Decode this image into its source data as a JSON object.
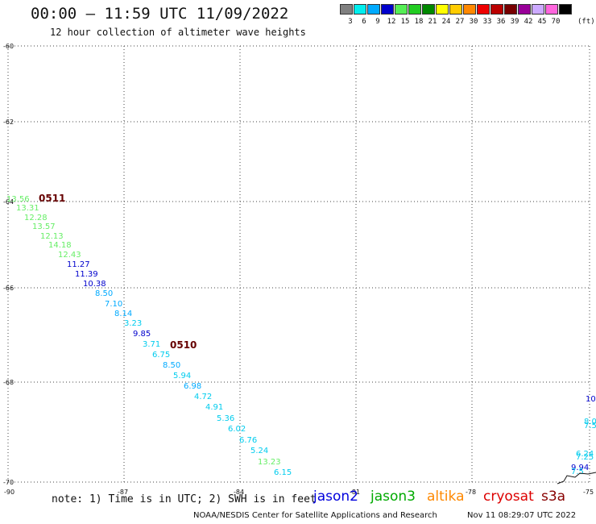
{
  "header": {
    "title": "00:00 – 11:59 UTC 11/09/2022",
    "subtitle": "12 hour collection of altimeter wave heights"
  },
  "legend": {
    "unit": "(ft)",
    "bins": [
      {
        "label": "3",
        "color": "#808080"
      },
      {
        "label": "6",
        "color": "#00eeee"
      },
      {
        "label": "9",
        "color": "#00aaff"
      },
      {
        "label": "12",
        "color": "#0000cc"
      },
      {
        "label": "15",
        "color": "#55ee55"
      },
      {
        "label": "18",
        "color": "#22cc22"
      },
      {
        "label": "21",
        "color": "#008800"
      },
      {
        "label": "24",
        "color": "#ffff00"
      },
      {
        "label": "27",
        "color": "#ffcc00"
      },
      {
        "label": "30",
        "color": "#ff8800"
      },
      {
        "label": "33",
        "color": "#ee0000"
      },
      {
        "label": "36",
        "color": "#bb0000"
      },
      {
        "label": "39",
        "color": "#770000"
      },
      {
        "label": "42",
        "color": "#990099"
      },
      {
        "label": "45",
        "color": "#ccaaff"
      },
      {
        "label": "70",
        "color": "#ff66dd"
      },
      {
        "label": "",
        "color": "#000000"
      }
    ]
  },
  "map": {
    "lon_range": [
      -90,
      -75
    ],
    "lat_range": [
      -70,
      -60
    ],
    "lon_ticks": [
      "-90",
      "-87",
      "-84",
      "-81",
      "-78",
      "-75"
    ],
    "lat_ticks": [
      "-60",
      "-62",
      "-64",
      "-66",
      "-68",
      "-70"
    ],
    "gridlines": true,
    "pass_times": [
      {
        "label": "0511",
        "color": "#660000"
      },
      {
        "label": "0510",
        "color": "#660000"
      }
    ],
    "observations": [
      {
        "text": "13.56",
        "color": "#66ee66"
      },
      {
        "text": "13.31",
        "color": "#66ee66"
      },
      {
        "text": "12.28",
        "color": "#66ee66"
      },
      {
        "text": "13.57",
        "color": "#66ee66"
      },
      {
        "text": "12.13",
        "color": "#66ee66"
      },
      {
        "text": "14.18",
        "color": "#66ee66"
      },
      {
        "text": "12.43",
        "color": "#66ee66"
      },
      {
        "text": "11.27",
        "color": "#0000cc"
      },
      {
        "text": "11.39",
        "color": "#0000cc"
      },
      {
        "text": "10.38",
        "color": "#0000cc"
      },
      {
        "text": "8.50",
        "color": "#00aaff"
      },
      {
        "text": "7.10",
        "color": "#00aaff"
      },
      {
        "text": "8.14",
        "color": "#00aaff"
      },
      {
        "text": "3.23",
        "color": "#00ccee"
      },
      {
        "text": "9.85",
        "color": "#0000cc"
      },
      {
        "text": "3.71",
        "color": "#00ccee"
      },
      {
        "text": "6.75",
        "color": "#00ccee"
      },
      {
        "text": "8.50",
        "color": "#00aaff"
      },
      {
        "text": "5.94",
        "color": "#00ccee"
      },
      {
        "text": "6.98",
        "color": "#00aaff"
      },
      {
        "text": "4.72",
        "color": "#00ccee"
      },
      {
        "text": "4.91",
        "color": "#00ccee"
      },
      {
        "text": "5.36",
        "color": "#00ccee"
      },
      {
        "text": "6.02",
        "color": "#00ccee"
      },
      {
        "text": "6.76",
        "color": "#00ccee"
      },
      {
        "text": "5.24",
        "color": "#00ccee"
      },
      {
        "text": "13.23",
        "color": "#66ee66"
      },
      {
        "text": "6.15",
        "color": "#00ccee"
      },
      {
        "text": "10",
        "color": "#0000cc"
      },
      {
        "text": "8.0",
        "color": "#00ccee"
      },
      {
        "text": "7.5",
        "color": "#00ccee"
      },
      {
        "text": "6.24",
        "color": "#00ccee"
      },
      {
        "text": "7.25",
        "color": "#00ccee"
      },
      {
        "text": "9.94",
        "color": "#0000cc"
      },
      {
        "text": "7.5",
        "color": "#00ccee"
      }
    ]
  },
  "footer": {
    "note": "note: 1) Time is in UTC; 2) SWH is in feet",
    "satellites": [
      {
        "name": "jason2",
        "color": "#0000dd"
      },
      {
        "name": "jason3",
        "color": "#00aa00"
      },
      {
        "name": "altika",
        "color": "#ff8800"
      },
      {
        "name": "cryosat",
        "color": "#dd0000"
      },
      {
        "name": "s3a",
        "color": "#880000"
      }
    ],
    "credit": "NOAA/NESDIS Center for Satellite Applications and Research",
    "timestamp": "Nov 11 08:29:07 UTC 2022"
  }
}
